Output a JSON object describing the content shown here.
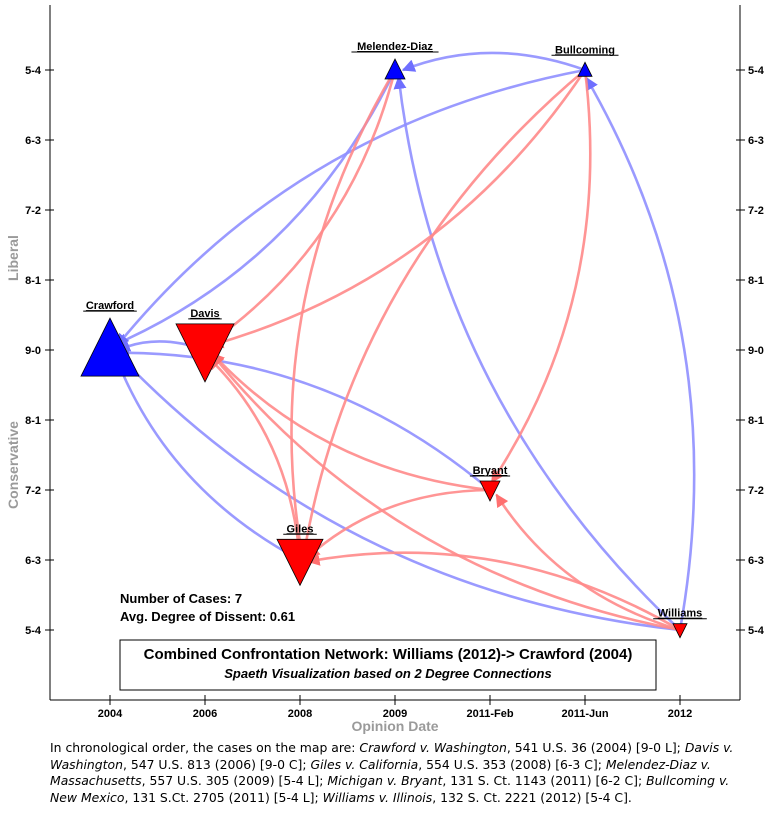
{
  "chart_data": {
    "type": "network",
    "x_axis": {
      "title": "Opinion Date",
      "ticks": [
        "2004",
        "2006",
        "2008",
        "2009",
        "2011-Feb",
        "2011-Jun",
        "2012"
      ]
    },
    "y_axis": {
      "title_top": "Liberal",
      "title_bottom": "Conservative",
      "ticks": [
        "5-4",
        "6-3",
        "7-2",
        "8-1",
        "9-0",
        "8-1",
        "7-2",
        "6-3",
        "5-4"
      ]
    },
    "nodes": [
      {
        "id": "crawford",
        "label": "Crawford",
        "date_index": 0,
        "vote": "9-0",
        "direction": "Liberal",
        "size": "large",
        "color": "#0000ff"
      },
      {
        "id": "davis",
        "label": "Davis",
        "date_index": 1,
        "vote": "9-0",
        "direction": "Conservative",
        "size": "large",
        "color": "#ff0000"
      },
      {
        "id": "giles",
        "label": "Giles",
        "date_index": 2,
        "vote": "6-3",
        "direction": "Conservative",
        "size": "medium",
        "color": "#ff0000"
      },
      {
        "id": "melendez",
        "label": "Melendez-Diaz",
        "date_index": 3,
        "vote": "5-4",
        "direction": "Liberal",
        "size": "small",
        "color": "#0000ff"
      },
      {
        "id": "bryant",
        "label": "Bryant",
        "date_index": 4,
        "vote": "6-2",
        "direction": "Conservative",
        "size": "small",
        "color": "#ff0000"
      },
      {
        "id": "bullcoming",
        "label": "Bullcoming",
        "date_index": 5,
        "vote": "5-4",
        "direction": "Liberal",
        "size": "tiny",
        "color": "#0000ff"
      },
      {
        "id": "williams",
        "label": "Williams",
        "date_index": 6,
        "vote": "5-4",
        "direction": "Conservative",
        "size": "tiny",
        "color": "#ff0000"
      }
    ],
    "edges": [
      {
        "from": "davis",
        "to": "crawford",
        "color": "#8080ff"
      },
      {
        "from": "melendez",
        "to": "crawford",
        "color": "#8080ff"
      },
      {
        "from": "bullcoming",
        "to": "crawford",
        "color": "#8080ff"
      },
      {
        "from": "giles",
        "to": "crawford",
        "color": "#8080ff"
      },
      {
        "from": "bryant",
        "to": "crawford",
        "color": "#8080ff"
      },
      {
        "from": "williams",
        "to": "crawford",
        "color": "#8080ff"
      },
      {
        "from": "bullcoming",
        "to": "melendez",
        "color": "#8080ff"
      },
      {
        "from": "williams",
        "to": "melendez",
        "color": "#8080ff"
      },
      {
        "from": "williams",
        "to": "bullcoming",
        "color": "#8080ff"
      },
      {
        "from": "melendez",
        "to": "davis",
        "color": "#ff8080"
      },
      {
        "from": "melendez",
        "to": "giles",
        "color": "#ff8080"
      },
      {
        "from": "bullcoming",
        "to": "davis",
        "color": "#ff8080"
      },
      {
        "from": "bullcoming",
        "to": "giles",
        "color": "#ff8080"
      },
      {
        "from": "bullcoming",
        "to": "bryant",
        "color": "#ff8080"
      },
      {
        "from": "giles",
        "to": "davis",
        "color": "#ff8080"
      },
      {
        "from": "bryant",
        "to": "davis",
        "color": "#ff8080"
      },
      {
        "from": "bryant",
        "to": "giles",
        "color": "#ff8080"
      },
      {
        "from": "williams",
        "to": "davis",
        "color": "#ff8080"
      },
      {
        "from": "williams",
        "to": "giles",
        "color": "#ff8080"
      },
      {
        "from": "williams",
        "to": "bryant",
        "color": "#ff8080"
      }
    ]
  },
  "stats": {
    "num_cases": "Number of Cases: 7",
    "avg_dissent": "Avg. Degree of Dissent: 0.61"
  },
  "legend_box": {
    "title": "Combined Confrontation Network: Williams (2012)-> Crawford (2004)",
    "subtitle": "Spaeth Visualization based on 2 Degree Connections"
  },
  "caption": {
    "intro": "In chronological order, the cases on the map are:",
    "cases": [
      {
        "name": "Crawford v. Washington",
        "cite": ", 541 U.S. 36 (2004) [9-0 L];"
      },
      {
        "name": "Davis v. Washington",
        "cite": ", 547 U.S. 813 (2006) [9-0 C];"
      },
      {
        "name": "Giles v. California",
        "cite": ", 554 U.S. 353 (2008) [6-3 C];"
      },
      {
        "name": "Melendez-Diaz v. Massachusetts",
        "cite": ", 557 U.S. 305 (2009) [5-4 L];"
      },
      {
        "name": "Michigan v. Bryant",
        "cite": ", 131 S. Ct. 1143 (2011) [6-2 C];"
      },
      {
        "name": "Bullcoming v. New Mexico",
        "cite": ", 131 S.Ct. 2705 (2011) [5-4 L];"
      },
      {
        "name": "Williams v. Illinois",
        "cite": ", 132 S. Ct. 2221 (2012) [5-4 C]."
      }
    ]
  }
}
